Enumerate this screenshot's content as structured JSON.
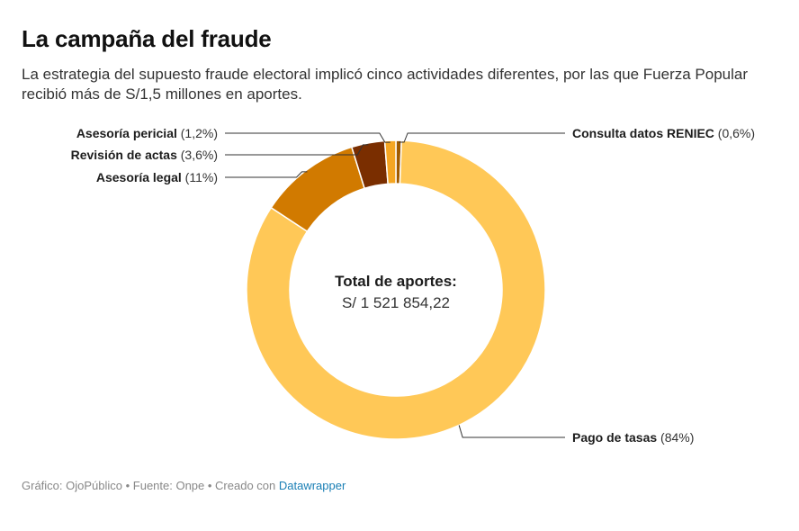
{
  "title": "La campaña del fraude",
  "subtitle": "La estrategia del supuesto fraude electoral implicó cinco actividades diferentes, por las que Fuerza Popular recibió más de S/1,5 millones en aportes.",
  "chart_data": {
    "type": "pie",
    "donut": true,
    "center": {
      "title": "Total de aportes:",
      "value": "S/ 1 521 854,22"
    },
    "slices": [
      {
        "name": "Consulta datos RENIEC",
        "value": 0.6,
        "pct_label": "(0,6%)",
        "color": "#a05a00"
      },
      {
        "name": "Pago de tasas",
        "value": 84,
        "pct_label": "(84%)",
        "color": "#ffc857"
      },
      {
        "name": "Asesoría legal",
        "value": 11,
        "pct_label": "(11%)",
        "color": "#d17a00"
      },
      {
        "name": "Revisión de actas",
        "value": 3.6,
        "pct_label": "(3,6%)",
        "color": "#7a2e00"
      },
      {
        "name": "Asesoría pericial",
        "value": 1.2,
        "pct_label": "(1,2%)",
        "color": "#f5a623"
      }
    ]
  },
  "footer": {
    "prefix": "Gráfico: OjoPúblico • Fuente: Onpe • Creado con ",
    "link_text": "Datawrapper"
  }
}
